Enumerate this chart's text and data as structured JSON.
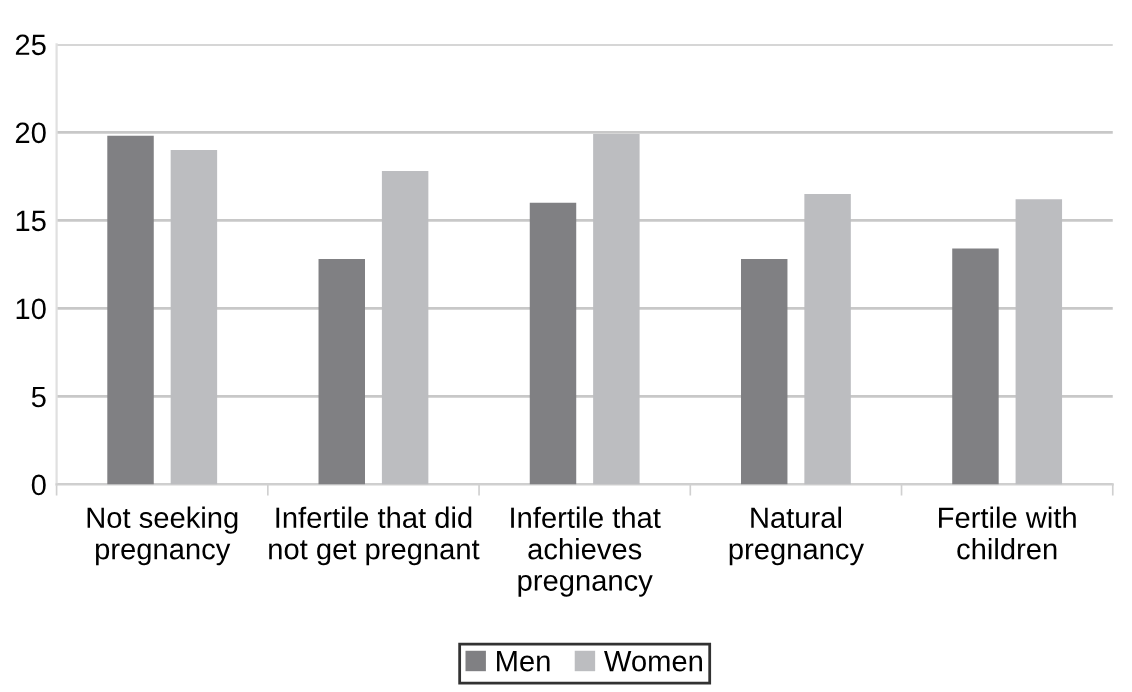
{
  "chart_data": {
    "type": "bar",
    "categories": [
      "Not seeking\npregnancy",
      "Infertile that did\nnot get pregnant",
      "Infertile that\nachieves\npregnancy",
      "Natural\npregnancy",
      "Fertile with\nchildren"
    ],
    "series": [
      {
        "name": "Men",
        "color": "#808083",
        "values": [
          19.8,
          12.8,
          16.0,
          12.8,
          13.4
        ]
      },
      {
        "name": "Women",
        "color": "#bcbdc0",
        "values": [
          19.0,
          17.8,
          19.9,
          16.5,
          16.2
        ]
      }
    ],
    "ylim": [
      0,
      25
    ],
    "yticks": [
      0,
      5,
      10,
      15,
      20,
      25
    ],
    "grid": "y",
    "legend": "bottom"
  }
}
